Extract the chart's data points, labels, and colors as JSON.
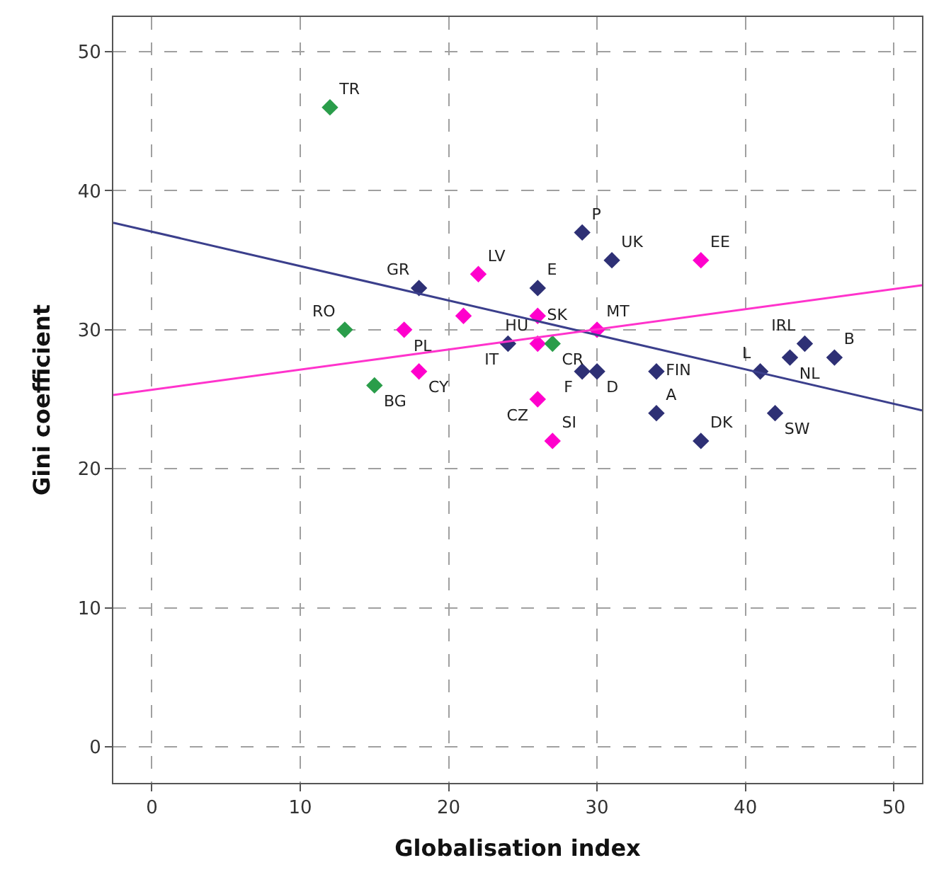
{
  "chart_data": {
    "type": "scatter",
    "xlabel": "Globalisation index",
    "ylabel": "Gini coefficient",
    "xlim": [
      -2.6,
      51.9
    ],
    "ylim": [
      -2.6,
      52.5
    ],
    "xticks": [
      0,
      10,
      20,
      30,
      40,
      50
    ],
    "yticks": [
      0,
      10,
      20,
      30,
      40,
      50
    ],
    "grid": true,
    "marker": "diamond",
    "series": [
      {
        "color": "#2e3075",
        "x": [
          29,
          31,
          18,
          26,
          24,
          29,
          30,
          34,
          34,
          37,
          41,
          44,
          43,
          46,
          42
        ],
        "values": [
          37,
          35,
          33,
          33,
          29,
          27,
          27,
          27,
          24,
          22,
          27,
          29,
          28,
          28,
          24
        ],
        "value_labels": [
          "P",
          "UK",
          "GR",
          "E",
          "IT",
          "F",
          "D",
          "FIN",
          "A",
          "DK",
          "L",
          "IRL",
          "NL",
          "B",
          "SW"
        ]
      },
      {
        "color": "#ff00cc",
        "x": [
          22,
          37,
          17,
          21,
          26,
          30,
          26,
          18,
          26,
          27
        ],
        "values": [
          34,
          35,
          30,
          31,
          31,
          30,
          29,
          27,
          25,
          22
        ],
        "value_labels": [
          "LV",
          "EE",
          "PL",
          null,
          "SK",
          "MT",
          "HU",
          "CY",
          "CZ",
          "SI"
        ]
      },
      {
        "color": "#2a9d4a",
        "x": [
          12,
          13,
          15,
          27
        ],
        "values": [
          46,
          30,
          26,
          29
        ],
        "value_labels": [
          "TR",
          "RO",
          "BG",
          "CR"
        ]
      },
      {
        "type": "line",
        "color": "#3b3f8c",
        "x": [
          -2.6,
          51.9
        ],
        "values": [
          37.7,
          24.2
        ],
        "marker": "none"
      },
      {
        "type": "line",
        "color": "#ff33cc",
        "x": [
          -2.6,
          51.9
        ],
        "values": [
          25.3,
          33.2
        ],
        "marker": "none"
      }
    ]
  }
}
